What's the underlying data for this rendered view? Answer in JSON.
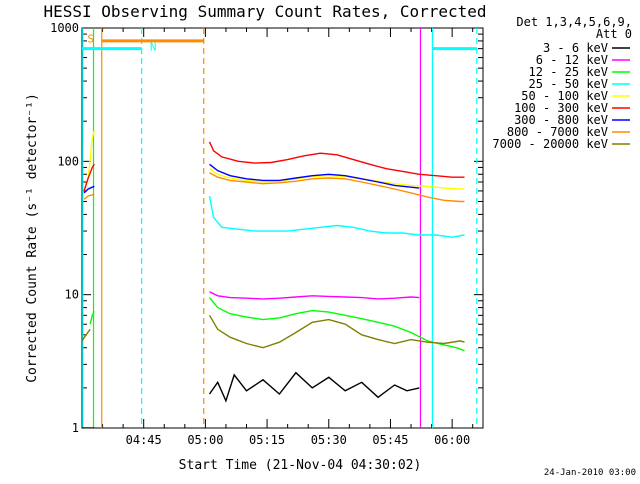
{
  "chart_data": {
    "type": "line",
    "title": "HESSI Observing Summary Count Rates, Corrected",
    "xlabel": "Start Time (21-Nov-04 04:30:02)",
    "ylabel": "Corrected Count Rate (s⁻¹ detector⁻¹)",
    "x_unit": "minutes after 04:30:02",
    "xlim": [
      0,
      97.5
    ],
    "ylim": [
      1,
      1000
    ],
    "y_scale": "log",
    "x_ticks": [
      {
        "value": 15,
        "label": "04:45"
      },
      {
        "value": 30,
        "label": "05:00"
      },
      {
        "value": 45,
        "label": "05:15"
      },
      {
        "value": 60,
        "label": "05:30"
      },
      {
        "value": 75,
        "label": "05:45"
      },
      {
        "value": 90,
        "label": "06:00"
      }
    ],
    "y_ticks": [
      {
        "value": 1,
        "label": "1"
      },
      {
        "value": 10,
        "label": "10"
      },
      {
        "value": 100,
        "label": "100"
      },
      {
        "value": 1000,
        "label": "1000"
      }
    ],
    "legend": {
      "header": "Det 1,3,4,5,6,9,",
      "subheader": "Att 0",
      "placement": "right"
    },
    "series": [
      {
        "name": "3 - 6 keV",
        "color": "#000000",
        "segments": [
          {
            "x": [
              0.0,
              1.0,
              2.0,
              3.0
            ],
            "y": [
              1.0,
              1.0,
              1.0,
              1.0
            ]
          },
          {
            "x": [
              31,
              33,
              35,
              37,
              40,
              44,
              48,
              52,
              56,
              60,
              64,
              68,
              72,
              76,
              79,
              82
            ],
            "y": [
              1.8,
              2.2,
              1.6,
              2.5,
              1.9,
              2.3,
              1.8,
              2.6,
              2.0,
              2.4,
              1.9,
              2.2,
              1.7,
              2.1,
              1.9,
              2.0
            ]
          }
        ]
      },
      {
        "name": "6 - 12 keV",
        "color": "#ff00ff",
        "segments": [
          {
            "x": [
              31,
              33,
              36,
              40,
              44,
              48,
              52,
              56,
              60,
              64,
              68,
              72,
              76,
              80,
              82
            ],
            "y": [
              10.5,
              9.8,
              9.5,
              9.4,
              9.3,
              9.4,
              9.6,
              9.8,
              9.7,
              9.6,
              9.5,
              9.3,
              9.4,
              9.6,
              9.5
            ]
          }
        ]
      },
      {
        "name": "12 - 25 keV",
        "color": "#00ff00",
        "segments": [
          {
            "x": [
              2.0,
              2.5,
              3.0
            ],
            "y": [
              6.0,
              7.0,
              7.5
            ]
          },
          {
            "x": [
              31,
              33,
              36,
              40,
              44,
              48,
              52,
              56,
              60,
              64,
              68,
              72,
              76,
              80,
              84,
              88,
              91,
              93
            ],
            "y": [
              9.5,
              8.0,
              7.2,
              6.8,
              6.5,
              6.7,
              7.2,
              7.6,
              7.4,
              7.0,
              6.6,
              6.2,
              5.8,
              5.2,
              4.5,
              4.2,
              4.0,
              3.8
            ]
          }
        ]
      },
      {
        "name": "25 - 50 keV",
        "color": "#00ffff",
        "segments": [
          {
            "x": [
              31,
              32,
              34,
              38,
              42,
              46,
              50,
              54,
              58,
              62,
              66,
              70,
              74,
              78,
              82,
              86,
              90,
              93
            ],
            "y": [
              55,
              38,
              32,
              31,
              30,
              30,
              30,
              31,
              32,
              33,
              32,
              30,
              29,
              29,
              28,
              28,
              27,
              28
            ]
          }
        ]
      },
      {
        "name": "50 - 100 keV",
        "color": "#ffff00",
        "segments": [
          {
            "x": [
              0.5,
              1.5,
              2.5,
              3.0
            ],
            "y": [
              60,
              75,
              150,
              170
            ]
          },
          {
            "x": [
              31,
              33,
              36,
              40,
              44,
              48,
              52,
              56,
              60,
              64,
              68,
              72,
              76,
              80,
              84,
              88,
              92,
              93
            ],
            "y": [
              88,
              80,
              75,
              72,
              70,
              71,
              74,
              77,
              78,
              77,
              74,
              71,
              68,
              66,
              65,
              63,
              62,
              62
            ]
          }
        ]
      },
      {
        "name": "100 - 300 keV",
        "color": "#ff0000",
        "segments": [
          {
            "x": [
              0.5,
              1.5,
              2.5,
              3.0
            ],
            "y": [
              60,
              75,
              90,
              95
            ]
          },
          {
            "x": [
              31,
              32,
              34,
              38,
              42,
              46,
              50,
              54,
              58,
              62,
              66,
              70,
              74,
              78,
              82,
              86,
              90,
              93
            ],
            "y": [
              140,
              120,
              108,
              100,
              97,
              98,
              103,
              110,
              115,
              112,
              103,
              95,
              88,
              84,
              80,
              78,
              76,
              76
            ]
          }
        ]
      },
      {
        "name": "300 - 800 keV",
        "color": "#0000ff",
        "segments": [
          {
            "x": [
              0.5,
              1.5,
              2.5,
              3.0
            ],
            "y": [
              58,
              62,
              64,
              65
            ]
          },
          {
            "x": [
              31,
              33,
              36,
              40,
              44,
              48,
              52,
              56,
              60,
              64,
              68,
              72,
              76,
              80,
              82
            ],
            "y": [
              95,
              85,
              78,
              74,
              72,
              72,
              75,
              78,
              80,
              78,
              74,
              70,
              66,
              64,
              63
            ]
          }
        ]
      },
      {
        "name": "800 - 7000 keV",
        "color": "#ff8c00",
        "segments": [
          {
            "x": [
              0.5,
              1.5,
              2.5,
              3.0
            ],
            "y": [
              52,
              55,
              56,
              57
            ]
          },
          {
            "x": [
              31,
              33,
              36,
              40,
              44,
              48,
              52,
              56,
              60,
              64,
              68,
              72,
              76,
              80,
              84,
              88,
              92,
              93
            ],
            "y": [
              82,
              76,
              72,
              70,
              68,
              69,
              71,
              74,
              75,
              74,
              70,
              66,
              62,
              58,
              54,
              51,
              50,
              50
            ]
          }
        ]
      },
      {
        "name": "7000 - 20000 keV",
        "color": "#808000",
        "segments": [
          {
            "x": [
              0.0,
              1.0,
              2.0
            ],
            "y": [
              4.5,
              5.0,
              5.5
            ]
          },
          {
            "x": [
              31,
              33,
              36,
              40,
              44,
              48,
              52,
              56,
              60,
              64,
              68,
              72,
              76,
              80,
              84,
              88,
              92,
              93
            ],
            "y": [
              7.0,
              5.5,
              4.8,
              4.3,
              4.0,
              4.4,
              5.2,
              6.2,
              6.5,
              6.0,
              5.0,
              4.6,
              4.3,
              4.6,
              4.4,
              4.3,
              4.5,
              4.4
            ]
          }
        ]
      }
    ],
    "annotations": [
      {
        "text": "S",
        "x": 1.3,
        "y": 780,
        "color": "#ff8c00"
      },
      {
        "text": "N",
        "x": 16.5,
        "y": 680,
        "color": "#00ffff"
      }
    ],
    "flag_bars": [
      {
        "color": "#ff8c00",
        "x_start": 4.8,
        "x_end": 29.6,
        "y": 800
      },
      {
        "color": "#00ffff",
        "x_start": 0,
        "x_end": 14.5,
        "y": 700
      },
      {
        "color": "#00ffff",
        "x_start": 85.2,
        "x_end": 96,
        "y": 700
      }
    ],
    "vertical_markers": [
      {
        "color": "#00ffff",
        "x": 0.2,
        "style": "solid"
      },
      {
        "color": "#00ff00",
        "x": 2.8,
        "style": "solid"
      },
      {
        "color": "#ff8c00",
        "x": 4.8,
        "style": "solid"
      },
      {
        "color": "#00ffff",
        "x": 14.5,
        "style": "dashed"
      },
      {
        "color": "#ff8c00",
        "x": 29.6,
        "style": "dashed"
      },
      {
        "color": "#00ffff",
        "x": 85.2,
        "style": "solid"
      },
      {
        "color": "#00ffff",
        "x": 96.0,
        "style": "dashed"
      },
      {
        "color": "#ff00ff",
        "x": 82.3,
        "style": "solid"
      }
    ],
    "footer": "24-Jan-2010 03:00"
  }
}
